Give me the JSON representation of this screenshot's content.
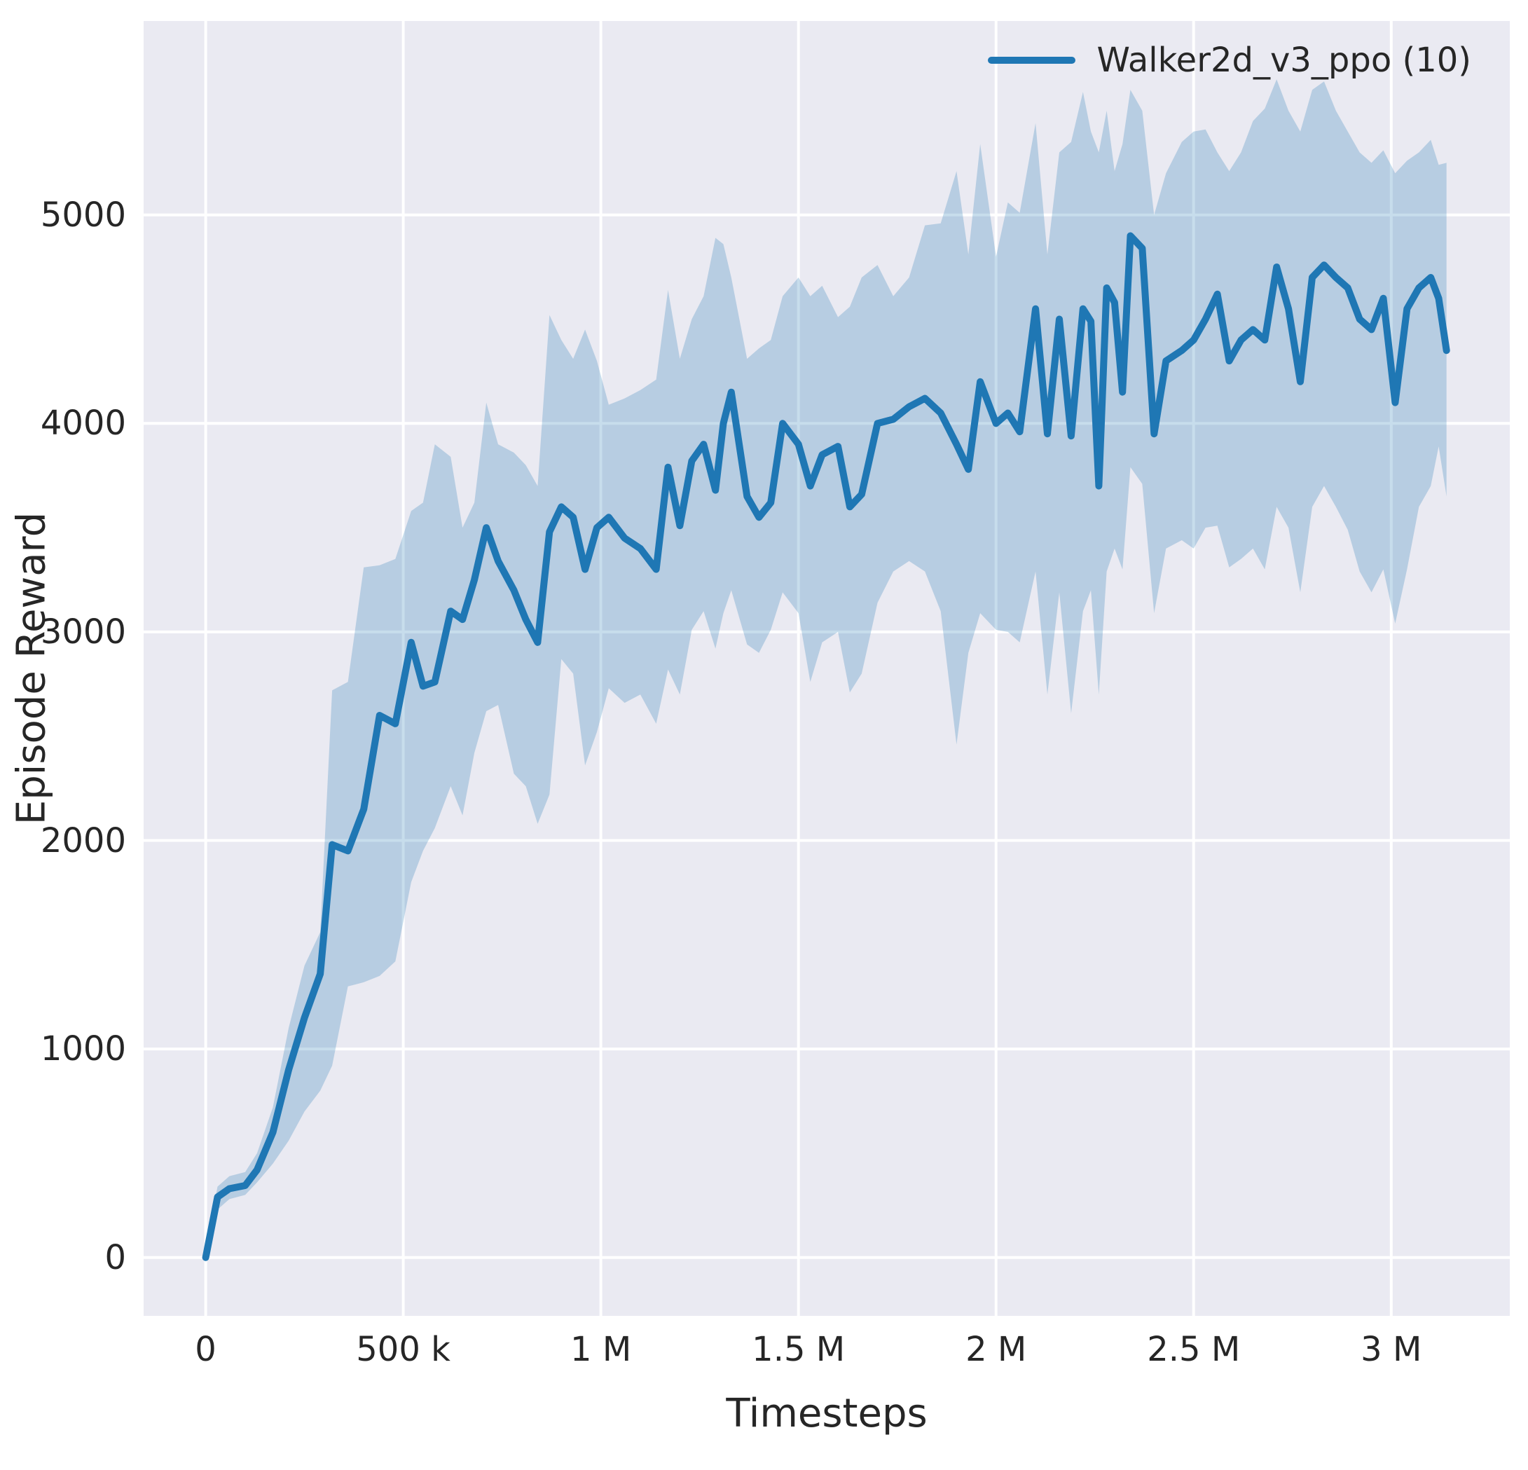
{
  "figure": {
    "plot_background": "#eaeaf2",
    "page_background": "#ffffff",
    "text_color": "#262626"
  },
  "chart_data": {
    "type": "line",
    "title": "",
    "xlabel": "Timesteps",
    "ylabel": "Episode Reward",
    "series_name": "Walker2d_v3_ppo (10)",
    "line_color": "#1f77b4",
    "band_color": "rgba(31,119,180,0.25)",
    "grid_color": "#ffffff",
    "grid_on": true,
    "legend_position": "upper right",
    "xlim": [
      -157000,
      3300000
    ],
    "ylim": [
      -280,
      5930
    ],
    "xticks": [
      {
        "value": 0,
        "label": "0"
      },
      {
        "value": 500000,
        "label": "500 k"
      },
      {
        "value": 1000000,
        "label": "1 M"
      },
      {
        "value": 1500000,
        "label": "1.5 M"
      },
      {
        "value": 2000000,
        "label": "2 M"
      },
      {
        "value": 2500000,
        "label": "2.5 M"
      },
      {
        "value": 3000000,
        "label": "3 M"
      }
    ],
    "yticks": [
      {
        "value": 0,
        "label": "0"
      },
      {
        "value": 1000,
        "label": "1000"
      },
      {
        "value": 2000,
        "label": "2000"
      },
      {
        "value": 3000,
        "label": "3000"
      },
      {
        "value": 4000,
        "label": "4000"
      },
      {
        "value": 5000,
        "label": "5000"
      }
    ],
    "x": [
      0,
      30000,
      60000,
      100000,
      130000,
      170000,
      210000,
      250000,
      290000,
      320000,
      360000,
      400000,
      440000,
      480000,
      520000,
      550000,
      580000,
      620000,
      650000,
      680000,
      710000,
      740000,
      780000,
      810000,
      840000,
      870000,
      900000,
      930000,
      960000,
      990000,
      1020000,
      1060000,
      1100000,
      1140000,
      1170000,
      1200000,
      1230000,
      1260000,
      1290000,
      1310000,
      1330000,
      1370000,
      1400000,
      1430000,
      1460000,
      1500000,
      1530000,
      1560000,
      1600000,
      1630000,
      1660000,
      1700000,
      1740000,
      1780000,
      1820000,
      1860000,
      1900000,
      1930000,
      1960000,
      2000000,
      2030000,
      2060000,
      2100000,
      2130000,
      2160000,
      2190000,
      2220000,
      2240000,
      2260000,
      2280000,
      2300000,
      2320000,
      2340000,
      2370000,
      2400000,
      2430000,
      2470000,
      2500000,
      2530000,
      2560000,
      2590000,
      2620000,
      2650000,
      2680000,
      2710000,
      2740000,
      2770000,
      2800000,
      2830000,
      2860000,
      2890000,
      2920000,
      2950000,
      2980000,
      3010000,
      3040000,
      3070000,
      3100000,
      3120000,
      3140000
    ],
    "mean": [
      0,
      290,
      330,
      345,
      420,
      600,
      900,
      1150,
      1360,
      1980,
      1950,
      2150,
      2600,
      2560,
      2950,
      2740,
      2760,
      3100,
      3060,
      3250,
      3500,
      3340,
      3200,
      3060,
      2950,
      3480,
      3600,
      3550,
      3300,
      3500,
      3550,
      3450,
      3400,
      3300,
      3790,
      3510,
      3820,
      3900,
      3680,
      4000,
      4150,
      3650,
      3550,
      3620,
      4000,
      3900,
      3700,
      3850,
      3890,
      3600,
      3660,
      4000,
      4020,
      4080,
      4120,
      4050,
      3900,
      3780,
      4200,
      4000,
      4050,
      3960,
      4550,
      3950,
      4500,
      3940,
      4550,
      4490,
      3700,
      4650,
      4580,
      4150,
      4900,
      4840,
      3950,
      4300,
      4350,
      4400,
      4500,
      4620,
      4300,
      4400,
      4450,
      4400,
      4750,
      4550,
      4200,
      4700,
      4760,
      4700,
      4650,
      4500,
      4450,
      4600,
      4100,
      4550,
      4650,
      4700,
      4600,
      4350
    ],
    "lower": [
      0,
      230,
      280,
      300,
      360,
      450,
      560,
      700,
      800,
      920,
      1300,
      1320,
      1350,
      1420,
      1800,
      1950,
      2060,
      2260,
      2120,
      2420,
      2620,
      2650,
      2320,
      2260,
      2080,
      2220,
      2870,
      2800,
      2360,
      2520,
      2730,
      2660,
      2700,
      2560,
      2820,
      2700,
      3010,
      3100,
      2920,
      3090,
      3200,
      2940,
      2900,
      3010,
      3190,
      3090,
      2760,
      2950,
      3000,
      2710,
      2800,
      3140,
      3290,
      3340,
      3290,
      3100,
      2460,
      2900,
      3090,
      3010,
      3000,
      2950,
      3290,
      2700,
      3190,
      2610,
      3100,
      3200,
      2700,
      3290,
      3400,
      3300,
      3790,
      3710,
      3090,
      3400,
      3440,
      3400,
      3500,
      3510,
      3310,
      3350,
      3400,
      3300,
      3600,
      3500,
      3190,
      3600,
      3700,
      3600,
      3490,
      3290,
      3190,
      3300,
      3040,
      3300,
      3600,
      3700,
      3890,
      3650
    ],
    "upper": [
      40,
      340,
      390,
      410,
      500,
      720,
      1100,
      1400,
      1560,
      2720,
      2760,
      3310,
      3320,
      3350,
      3580,
      3620,
      3900,
      3840,
      3500,
      3620,
      4100,
      3900,
      3860,
      3800,
      3700,
      4520,
      4400,
      4310,
      4450,
      4300,
      4090,
      4120,
      4160,
      4210,
      4640,
      4310,
      4500,
      4610,
      4890,
      4860,
      4700,
      4310,
      4360,
      4400,
      4610,
      4700,
      4610,
      4660,
      4510,
      4560,
      4700,
      4760,
      4610,
      4700,
      4950,
      4960,
      5210,
      4810,
      5340,
      4800,
      5060,
      5010,
      5440,
      4810,
      5300,
      5350,
      5590,
      5400,
      5300,
      5500,
      5210,
      5340,
      5600,
      5500,
      5000,
      5200,
      5350,
      5400,
      5410,
      5300,
      5210,
      5300,
      5450,
      5510,
      5650,
      5500,
      5400,
      5600,
      5640,
      5500,
      5400,
      5300,
      5250,
      5310,
      5200,
      5260,
      5300,
      5360,
      5240,
      5250
    ]
  }
}
